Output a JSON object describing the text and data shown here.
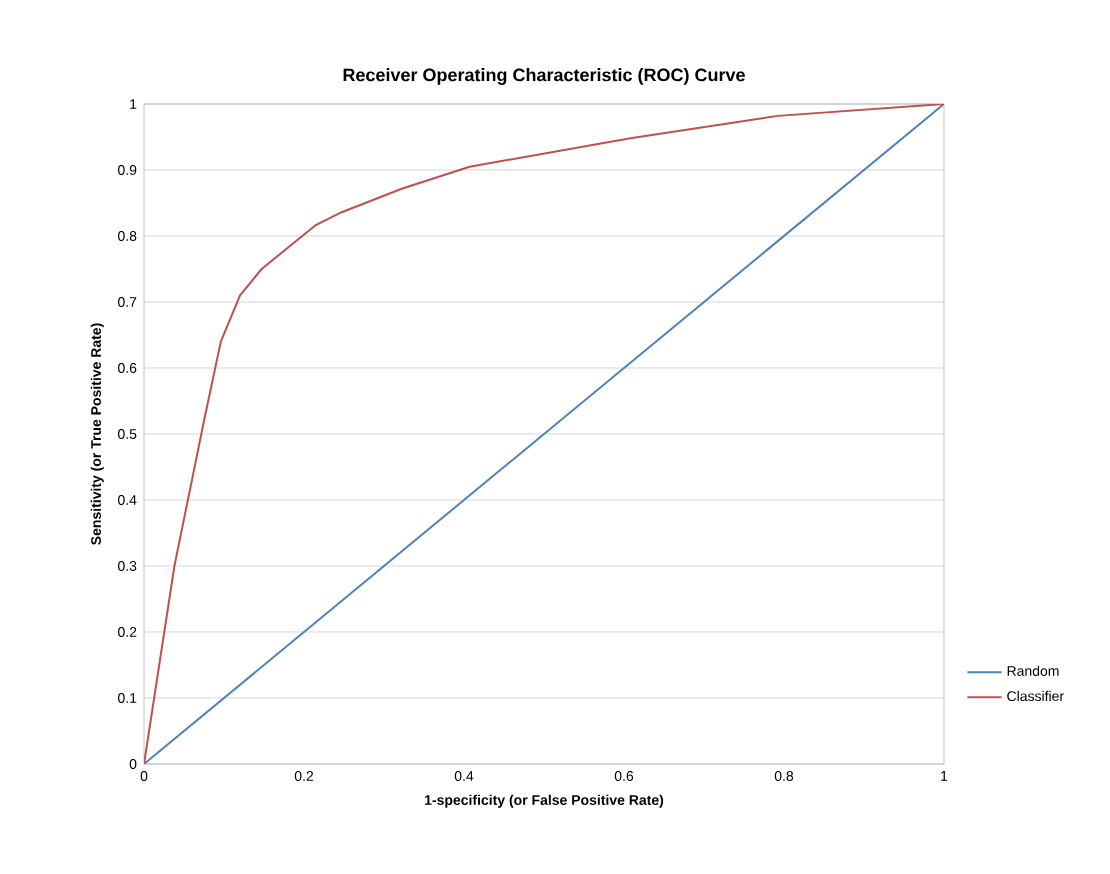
{
  "chart_data": {
    "type": "line",
    "title": "Receiver Operating Characteristic (ROC) Curve",
    "xlabel": "1-specificity (or False Positive Rate)",
    "ylabel": "Sensitivity (or True Positive Rate)",
    "series": [
      {
        "name": "Random",
        "color": "#4f81bd",
        "x": [
          0,
          1
        ],
        "values": [
          0,
          1
        ]
      },
      {
        "name": "Classifier",
        "color": "#c0504d",
        "x": [
          0,
          0.038,
          0.075,
          0.096,
          0.12,
          0.147,
          0.214,
          0.247,
          0.323,
          0.407,
          0.608,
          0.792,
          1
        ],
        "values": [
          0,
          0.3,
          0.52,
          0.64,
          0.71,
          0.75,
          0.816,
          0.836,
          0.872,
          0.905,
          0.948,
          0.982,
          1
        ]
      }
    ],
    "xlim": [
      0,
      1
    ],
    "ylim": [
      0,
      1
    ],
    "xticks": [
      0,
      0.2,
      0.4,
      0.6,
      0.8,
      1
    ],
    "yticks": [
      0,
      0.1,
      0.2,
      0.3,
      0.4,
      0.5,
      0.6,
      0.7,
      0.8,
      0.9,
      1
    ],
    "grid": "y",
    "legend": "right",
    "marker": "none",
    "line_style": "solid"
  }
}
